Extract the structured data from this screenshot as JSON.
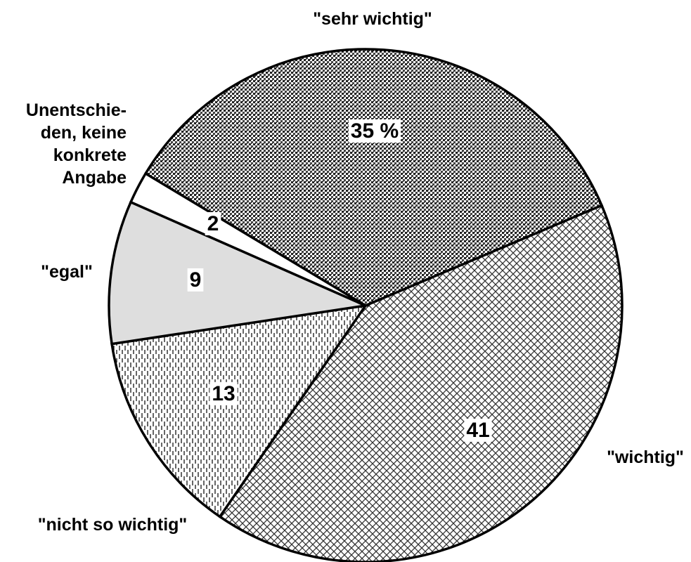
{
  "chart_data": {
    "type": "pie",
    "categories": [
      "\"sehr wichtig\"",
      "\"wichtig\"",
      "\"nicht so wichtig\"",
      "\"egal\"",
      "Unentschie-\nden, keine\nkonkrete\nAngabe"
    ],
    "values": [
      35,
      41,
      13,
      9,
      2
    ],
    "value_labels": [
      "35 %",
      "41",
      "13",
      "9",
      "2"
    ]
  }
}
